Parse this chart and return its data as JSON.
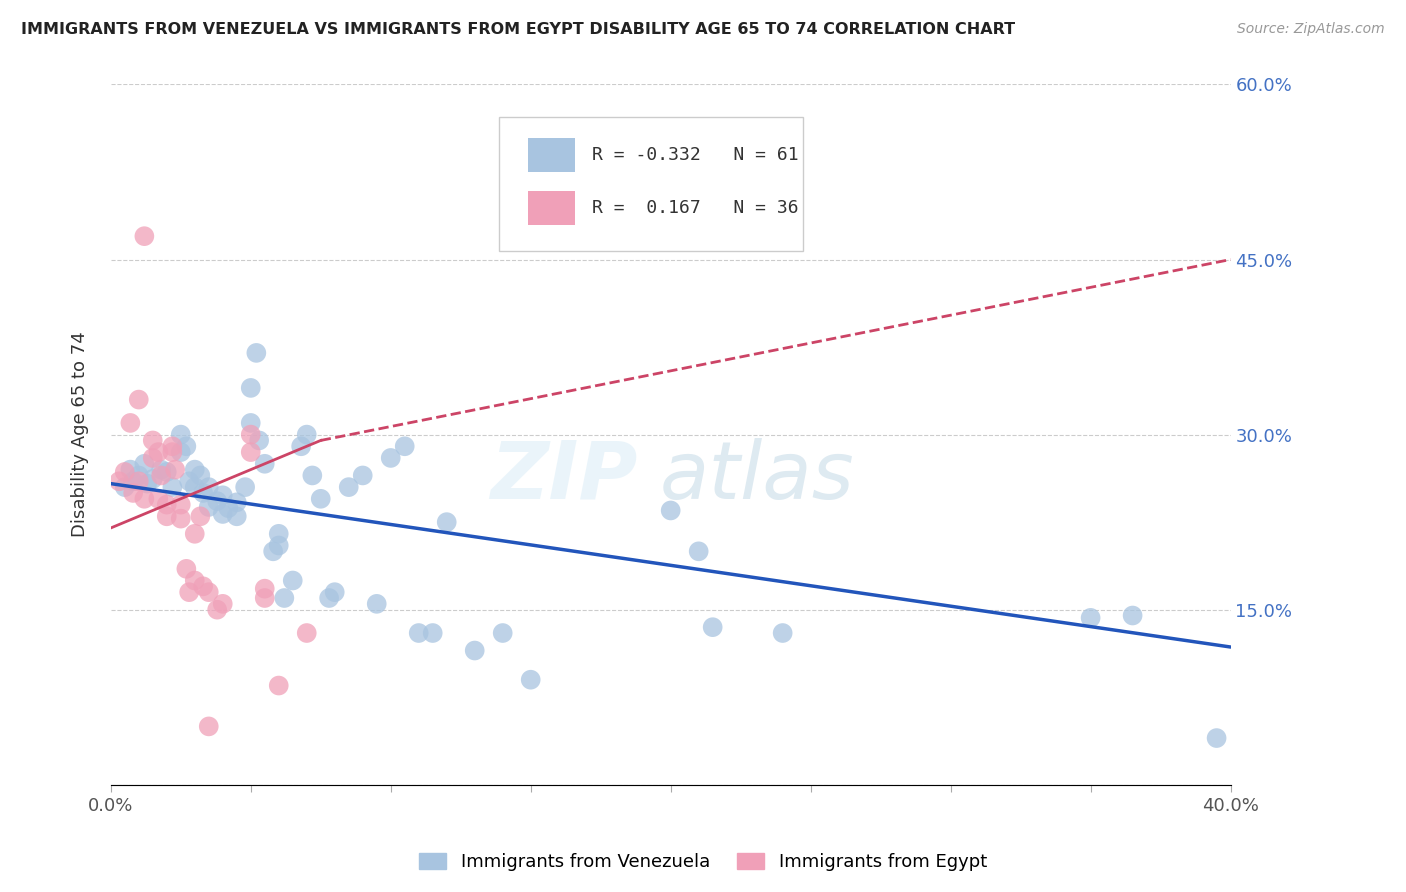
{
  "title": "IMMIGRANTS FROM VENEZUELA VS IMMIGRANTS FROM EGYPT DISABILITY AGE 65 TO 74 CORRELATION CHART",
  "source": "Source: ZipAtlas.com",
  "ylabel": "Disability Age 65 to 74",
  "xlim": [
    0.0,
    0.4
  ],
  "ylim": [
    0.0,
    0.6
  ],
  "xticks": [
    0.0,
    0.05,
    0.1,
    0.15,
    0.2,
    0.25,
    0.3,
    0.35,
    0.4
  ],
  "xticklabels": [
    "0.0%",
    "",
    "",
    "",
    "",
    "",
    "",
    "",
    "40.0%"
  ],
  "yticks": [
    0.0,
    0.15,
    0.3,
    0.45,
    0.6
  ],
  "yticklabels": [
    "",
    "15.0%",
    "30.0%",
    "45.0%",
    "60.0%"
  ],
  "legend_labels": [
    "Immigrants from Venezuela",
    "Immigrants from Egypt"
  ],
  "legend_R": [
    "-0.332",
    "0.167"
  ],
  "legend_N": [
    "61",
    "36"
  ],
  "blue_color": "#a8c4e0",
  "pink_color": "#f0a0b8",
  "blue_line_color": "#2255bb",
  "pink_line_color": "#cc4466",
  "watermark": "ZIPatlas",
  "blue_dots": [
    [
      0.005,
      0.255
    ],
    [
      0.007,
      0.27
    ],
    [
      0.008,
      0.26
    ],
    [
      0.01,
      0.265
    ],
    [
      0.012,
      0.275
    ],
    [
      0.013,
      0.258
    ],
    [
      0.015,
      0.262
    ],
    [
      0.018,
      0.27
    ],
    [
      0.02,
      0.268
    ],
    [
      0.022,
      0.255
    ],
    [
      0.025,
      0.285
    ],
    [
      0.025,
      0.3
    ],
    [
      0.027,
      0.29
    ],
    [
      0.028,
      0.26
    ],
    [
      0.03,
      0.27
    ],
    [
      0.03,
      0.255
    ],
    [
      0.032,
      0.265
    ],
    [
      0.033,
      0.25
    ],
    [
      0.035,
      0.255
    ],
    [
      0.035,
      0.238
    ],
    [
      0.038,
      0.243
    ],
    [
      0.04,
      0.248
    ],
    [
      0.04,
      0.232
    ],
    [
      0.042,
      0.237
    ],
    [
      0.045,
      0.23
    ],
    [
      0.045,
      0.242
    ],
    [
      0.048,
      0.255
    ],
    [
      0.05,
      0.31
    ],
    [
      0.05,
      0.34
    ],
    [
      0.052,
      0.37
    ],
    [
      0.053,
      0.295
    ],
    [
      0.055,
      0.275
    ],
    [
      0.058,
      0.2
    ],
    [
      0.06,
      0.215
    ],
    [
      0.06,
      0.205
    ],
    [
      0.062,
      0.16
    ],
    [
      0.065,
      0.175
    ],
    [
      0.068,
      0.29
    ],
    [
      0.07,
      0.3
    ],
    [
      0.072,
      0.265
    ],
    [
      0.075,
      0.245
    ],
    [
      0.078,
      0.16
    ],
    [
      0.08,
      0.165
    ],
    [
      0.085,
      0.255
    ],
    [
      0.09,
      0.265
    ],
    [
      0.095,
      0.155
    ],
    [
      0.1,
      0.28
    ],
    [
      0.105,
      0.29
    ],
    [
      0.11,
      0.13
    ],
    [
      0.115,
      0.13
    ],
    [
      0.12,
      0.225
    ],
    [
      0.13,
      0.115
    ],
    [
      0.14,
      0.13
    ],
    [
      0.15,
      0.09
    ],
    [
      0.2,
      0.235
    ],
    [
      0.21,
      0.2
    ],
    [
      0.215,
      0.135
    ],
    [
      0.24,
      0.13
    ],
    [
      0.35,
      0.143
    ],
    [
      0.365,
      0.145
    ],
    [
      0.395,
      0.04
    ]
  ],
  "pink_dots": [
    [
      0.003,
      0.26
    ],
    [
      0.005,
      0.268
    ],
    [
      0.007,
      0.31
    ],
    [
      0.008,
      0.25
    ],
    [
      0.01,
      0.26
    ],
    [
      0.01,
      0.33
    ],
    [
      0.012,
      0.245
    ],
    [
      0.012,
      0.47
    ],
    [
      0.015,
      0.28
    ],
    [
      0.015,
      0.295
    ],
    [
      0.017,
      0.245
    ],
    [
      0.017,
      0.285
    ],
    [
      0.018,
      0.265
    ],
    [
      0.02,
      0.24
    ],
    [
      0.02,
      0.23
    ],
    [
      0.022,
      0.285
    ],
    [
      0.022,
      0.29
    ],
    [
      0.023,
      0.27
    ],
    [
      0.025,
      0.228
    ],
    [
      0.025,
      0.24
    ],
    [
      0.027,
      0.185
    ],
    [
      0.028,
      0.165
    ],
    [
      0.03,
      0.175
    ],
    [
      0.03,
      0.215
    ],
    [
      0.032,
      0.23
    ],
    [
      0.033,
      0.17
    ],
    [
      0.035,
      0.165
    ],
    [
      0.035,
      0.05
    ],
    [
      0.038,
      0.15
    ],
    [
      0.04,
      0.155
    ],
    [
      0.05,
      0.285
    ],
    [
      0.05,
      0.3
    ],
    [
      0.055,
      0.16
    ],
    [
      0.055,
      0.168
    ],
    [
      0.06,
      0.085
    ],
    [
      0.07,
      0.13
    ]
  ],
  "blue_line": {
    "x0": 0.0,
    "y0": 0.258,
    "x1": 0.4,
    "y1": 0.118
  },
  "pink_line_solid": {
    "x0": 0.0,
    "y0": 0.22,
    "x1": 0.075,
    "y1": 0.295
  },
  "pink_line_dashed": {
    "x0": 0.075,
    "y0": 0.295,
    "x1": 0.4,
    "y1": 0.45
  }
}
